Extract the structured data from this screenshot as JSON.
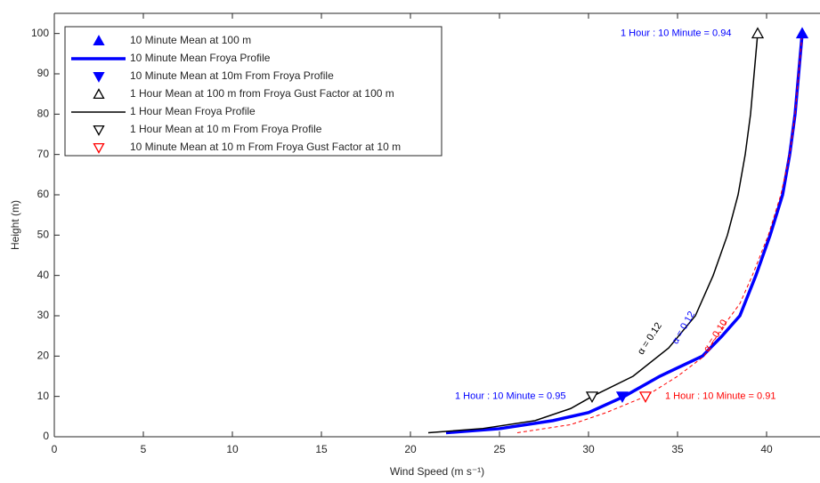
{
  "chart_data": {
    "type": "line",
    "xlabel": "Wind Speed (m s⁻¹)",
    "ylabel": "Height (m)",
    "xlim": [
      0,
      43
    ],
    "ylim": [
      0,
      105
    ],
    "xticks": [
      0,
      5,
      10,
      15,
      20,
      25,
      30,
      35,
      40
    ],
    "yticks": [
      0,
      10,
      20,
      30,
      40,
      50,
      60,
      70,
      80,
      90,
      100
    ],
    "series": [
      {
        "name": "10 Minute Mean at 100 m",
        "color": "#0000ff",
        "marker": "triangle-up",
        "filled": true,
        "x": [
          42
        ],
        "values": [
          100
        ]
      },
      {
        "name": "10 Minute Mean Froya Profile",
        "color": "#0000ff",
        "line_width": 3.5,
        "x": [
          22,
          25,
          28,
          30,
          32,
          34,
          36.4,
          37.5,
          38.5,
          39.4,
          40.2,
          40.9,
          41.3,
          41.6,
          41.8,
          42
        ],
        "values": [
          1,
          2,
          4,
          6,
          10,
          15,
          20,
          25,
          30,
          40,
          50,
          60,
          70,
          80,
          90,
          100
        ]
      },
      {
        "name": "10 Minute Mean at 10m From Froya Profile",
        "color": "#0000ff",
        "marker": "triangle-down",
        "filled": true,
        "x": [
          31.9
        ],
        "values": [
          10
        ]
      },
      {
        "name": "1 Hour Mean at 100 m from Froya Gust Factor at 100 m",
        "color": "#000000",
        "marker": "triangle-up",
        "filled": false,
        "x": [
          39.5
        ],
        "values": [
          100
        ]
      },
      {
        "name": "1 Hour Mean Froya Profile",
        "color": "#000000",
        "line_width": 1.5,
        "x": [
          21,
          24,
          27,
          29,
          30.2,
          32.5,
          34.5,
          36,
          37,
          37.8,
          38.4,
          38.8,
          39.1,
          39.3,
          39.5
        ],
        "values": [
          1,
          2,
          4,
          7,
          10,
          15,
          22,
          30,
          40,
          50,
          60,
          70,
          80,
          90,
          100
        ]
      },
      {
        "name": "1 Hour Mean at 10 m From Froya Profile",
        "color": "#000000",
        "marker": "triangle-down",
        "filled": false,
        "x": [
          30.2
        ],
        "values": [
          10
        ]
      },
      {
        "name": "10 Minute Mean at 10 m From Froya Gust Factor at 10 m",
        "color": "#ff0000",
        "marker": "triangle-down",
        "filled": false,
        "x": [
          33.2
        ],
        "values": [
          10
        ]
      },
      {
        "color": "#ff0000",
        "line_width": 1,
        "dashed": true,
        "x": [
          26,
          29,
          31,
          33.2,
          35,
          36.5,
          37.5,
          38.5,
          39.2,
          40.1,
          40.8,
          41.3,
          41.6,
          41.8,
          42
        ],
        "values": [
          1,
          3,
          6,
          10,
          15,
          20,
          27,
          33,
          40,
          50,
          60,
          70,
          80,
          90,
          100
        ]
      }
    ],
    "annotations": [
      {
        "text": "1 Hour : 10 Minute = 0.94",
        "x": 31.8,
        "y": 100,
        "color": "#0000ff"
      },
      {
        "text": "1 Hour : 10 Minute = 0.95",
        "x": 22.5,
        "y": 10,
        "color": "#0000ff"
      },
      {
        "text": "1 Hour : 10 Minute = 0.91",
        "x": 34.3,
        "y": 10,
        "color": "#ff0000"
      },
      {
        "text": "α = 0.12",
        "x": 33.45,
        "y": 24.3,
        "color": "#000000"
      },
      {
        "text": "α = 0.12",
        "x": 35.35,
        "y": 27,
        "color": "#0000ff"
      },
      {
        "text": "α = 0.10",
        "x": 37.15,
        "y": 25,
        "color": "#ff0000"
      }
    ]
  }
}
